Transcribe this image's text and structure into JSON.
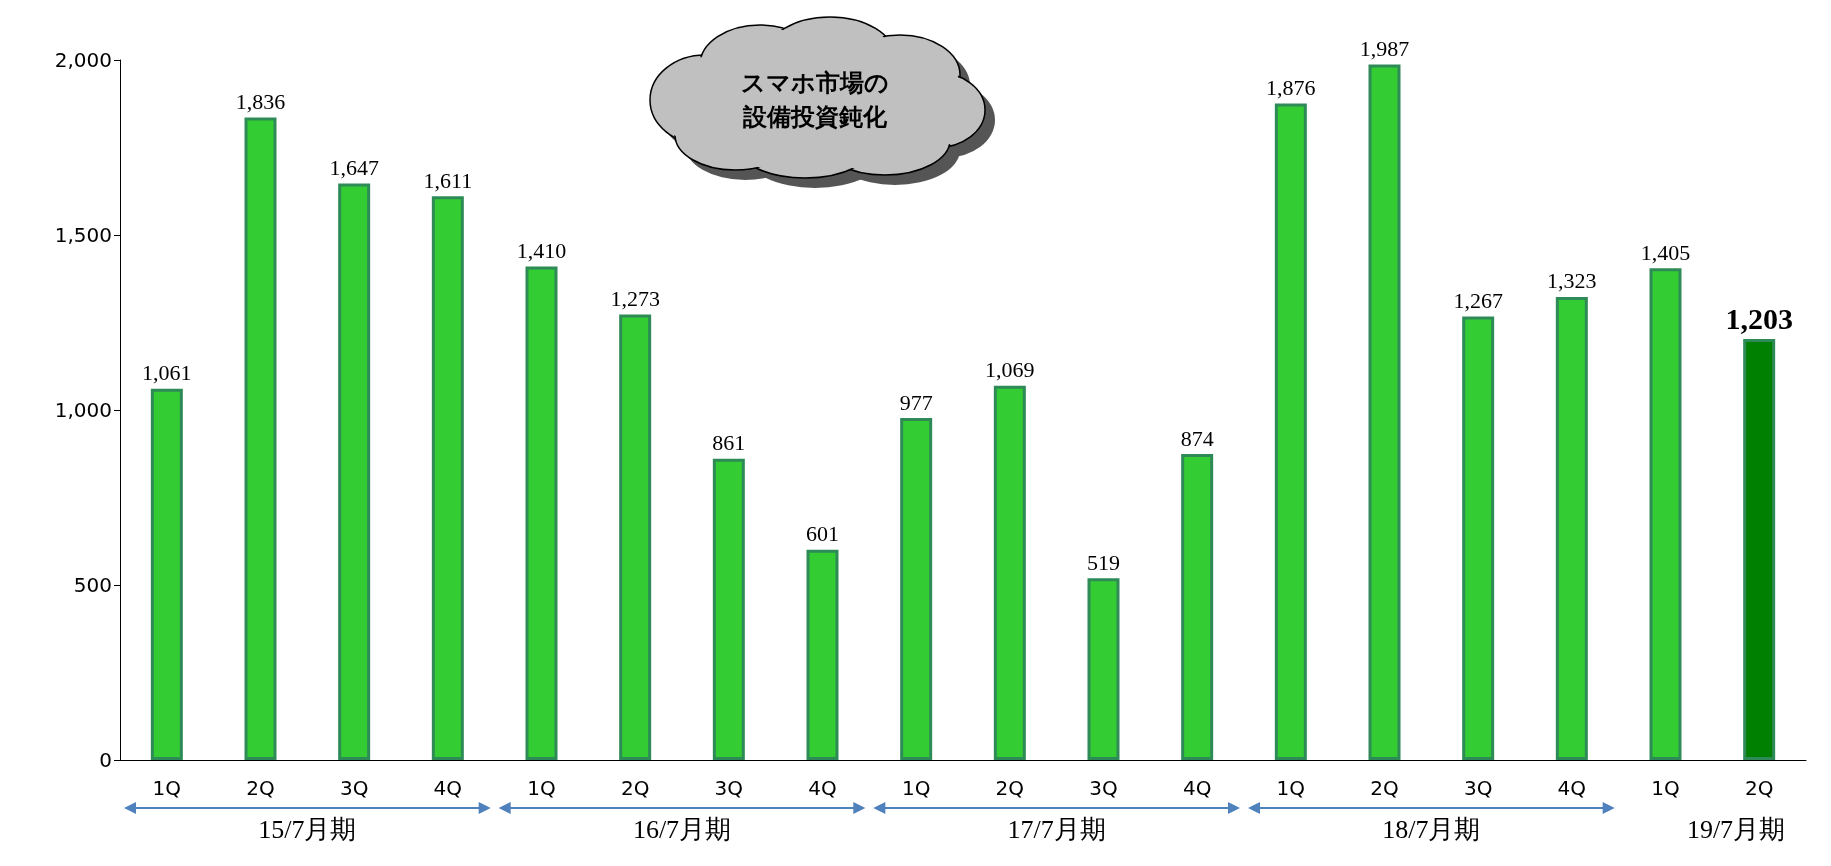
{
  "chart_data": {
    "type": "bar",
    "categories": [
      "1Q",
      "2Q",
      "3Q",
      "4Q",
      "1Q",
      "2Q",
      "3Q",
      "4Q",
      "1Q",
      "2Q",
      "3Q",
      "4Q",
      "1Q",
      "2Q",
      "3Q",
      "4Q",
      "1Q",
      "2Q"
    ],
    "values": [
      1061,
      1836,
      1647,
      1611,
      1410,
      1273,
      861,
      601,
      977,
      1069,
      519,
      874,
      1876,
      1987,
      1267,
      1323,
      1405,
      1203
    ],
    "colors": [
      "#33cc33",
      "#33cc33",
      "#33cc33",
      "#33cc33",
      "#33cc33",
      "#33cc33",
      "#33cc33",
      "#33cc33",
      "#33cc33",
      "#33cc33",
      "#33cc33",
      "#33cc33",
      "#33cc33",
      "#33cc33",
      "#33cc33",
      "#33cc33",
      "#33cc33",
      "#008000"
    ],
    "value_labels": [
      "1,061",
      "1,836",
      "1,647",
      "1,611",
      "1,410",
      "1,273",
      "861",
      "601",
      "977",
      "1,069",
      "519",
      "874",
      "1,876",
      "1,987",
      "1,267",
      "1,323",
      "1,405",
      "1,203"
    ],
    "ylim": [
      0,
      2000
    ],
    "yticks": [
      0,
      500,
      {
        "value": 1000,
        "label": "1,000"
      },
      {
        "value": 1500,
        "label": "1,500"
      },
      {
        "value": 2000,
        "label": "2,000"
      }
    ],
    "grid": false,
    "annotations": [
      "スマホ市場の",
      "設備投資鈍化",
      "15/7月期",
      "16/7月期",
      "17/7月期",
      "18/7月期",
      "19/7月期"
    ]
  }
}
